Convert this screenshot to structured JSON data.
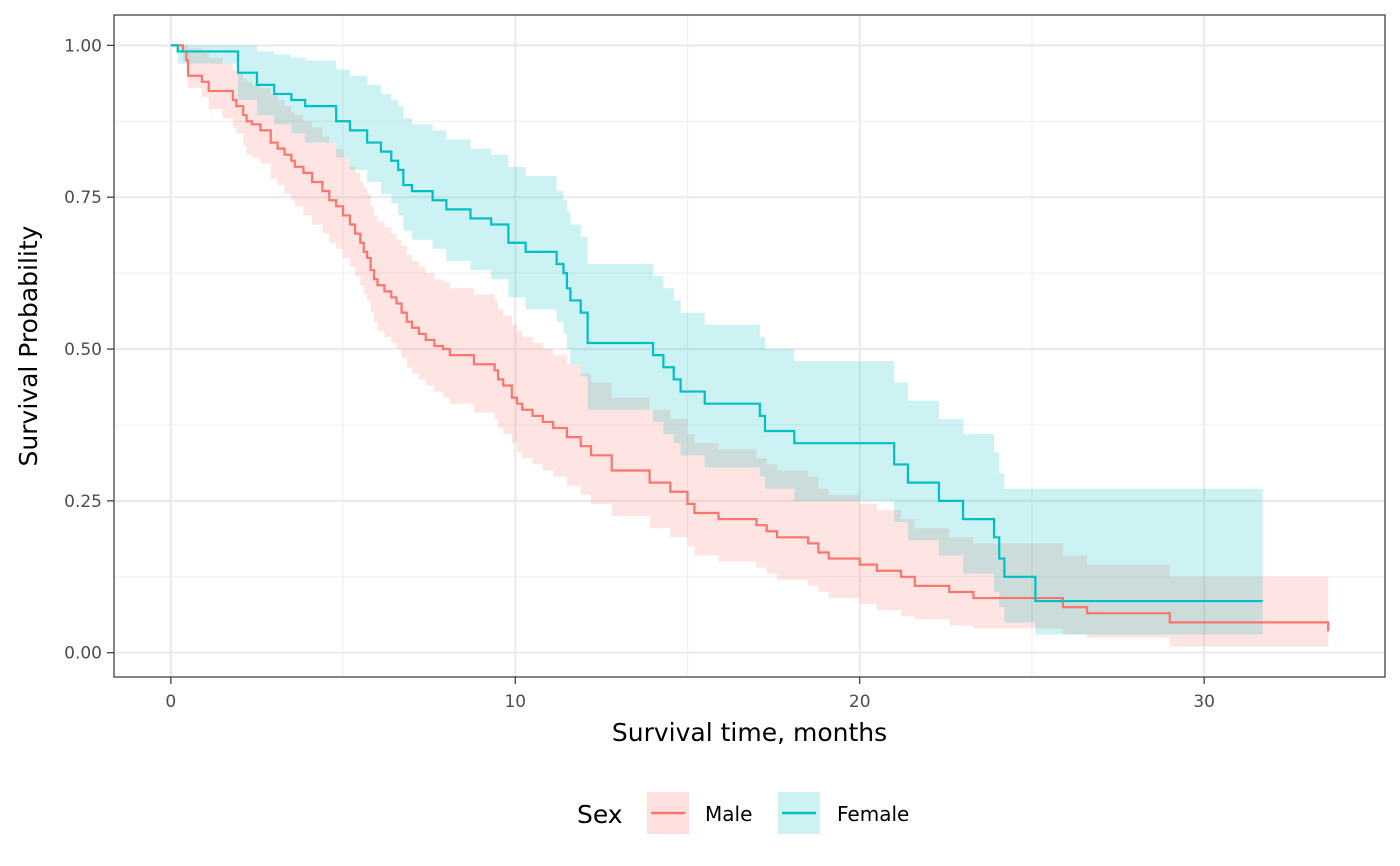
{
  "chart_data": {
    "type": "line",
    "subtype": "kaplan-meier step curves with confidence bands",
    "xlabel": "Survival time, months",
    "ylabel": "Survival Probability",
    "xlim": [
      -1.65,
      35.25
    ],
    "ylim": [
      -0.04,
      1.05
    ],
    "x_ticks": [
      0,
      10,
      20,
      30
    ],
    "x_tick_labels": [
      "0",
      "10",
      "20",
      "30"
    ],
    "y_ticks": [
      0,
      0.25,
      0.5,
      0.75,
      1
    ],
    "y_tick_labels": [
      "0.00",
      "0.25",
      "0.50",
      "0.75",
      "1.00"
    ],
    "grid": true,
    "legend": {
      "title": "Sex",
      "position": "bottom"
    },
    "series": [
      {
        "name": "Male",
        "color": "#F8766D",
        "fill": "#FFE0DE",
        "x": [
          0,
          0.35,
          0.45,
          0.5,
          0.9,
          1.1,
          1.5,
          1.8,
          1.9,
          2.1,
          2.2,
          2.35,
          2.6,
          2.9,
          3.1,
          3.3,
          3.5,
          3.6,
          3.85,
          4.1,
          4.4,
          4.6,
          4.8,
          5.0,
          5.2,
          5.35,
          5.5,
          5.6,
          5.7,
          5.8,
          5.9,
          6.0,
          6.2,
          6.4,
          6.55,
          6.7,
          6.85,
          7.0,
          7.2,
          7.4,
          7.65,
          7.9,
          8.1,
          8.4,
          8.8,
          9.4,
          9.5,
          9.65,
          9.9,
          10.05,
          10.2,
          10.5,
          10.8,
          11.1,
          11.5,
          11.9,
          12.2,
          12.8,
          13.9,
          14.5,
          15.0,
          15.2,
          15.9,
          17.0,
          17.3,
          17.6,
          18.5,
          18.8,
          19.1,
          20.0,
          20.5,
          21.2,
          21.6,
          22.6,
          23.3,
          25.9,
          26.6,
          29.0,
          33.6
        ],
        "y": [
          1,
          0.99,
          0.975,
          0.95,
          0.94,
          0.925,
          0.925,
          0.91,
          0.9,
          0.885,
          0.875,
          0.87,
          0.86,
          0.84,
          0.83,
          0.82,
          0.81,
          0.8,
          0.79,
          0.775,
          0.76,
          0.745,
          0.735,
          0.72,
          0.705,
          0.69,
          0.675,
          0.66,
          0.65,
          0.63,
          0.615,
          0.605,
          0.595,
          0.585,
          0.575,
          0.56,
          0.545,
          0.535,
          0.525,
          0.515,
          0.505,
          0.5,
          0.49,
          0.49,
          0.475,
          0.465,
          0.45,
          0.44,
          0.42,
          0.41,
          0.4,
          0.39,
          0.38,
          0.37,
          0.355,
          0.34,
          0.325,
          0.3,
          0.28,
          0.265,
          0.245,
          0.23,
          0.22,
          0.21,
          0.2,
          0.19,
          0.18,
          0.165,
          0.155,
          0.145,
          0.135,
          0.125,
          0.11,
          0.1,
          0.09,
          0.075,
          0.065,
          0.05,
          0.035
        ],
        "upper": [
          1,
          1,
          1,
          0.995,
          0.99,
          0.98,
          0.97,
          0.96,
          0.955,
          0.945,
          0.94,
          0.935,
          0.93,
          0.92,
          0.91,
          0.9,
          0.89,
          0.885,
          0.875,
          0.865,
          0.85,
          0.84,
          0.83,
          0.815,
          0.8,
          0.79,
          0.775,
          0.765,
          0.755,
          0.735,
          0.72,
          0.71,
          0.7,
          0.69,
          0.68,
          0.67,
          0.655,
          0.645,
          0.635,
          0.625,
          0.615,
          0.61,
          0.6,
          0.6,
          0.59,
          0.58,
          0.565,
          0.555,
          0.54,
          0.53,
          0.52,
          0.51,
          0.5,
          0.49,
          0.475,
          0.46,
          0.445,
          0.42,
          0.4,
          0.385,
          0.36,
          0.345,
          0.335,
          0.32,
          0.31,
          0.3,
          0.29,
          0.27,
          0.26,
          0.245,
          0.235,
          0.22,
          0.205,
          0.19,
          0.18,
          0.16,
          0.145,
          0.125,
          0.115
        ],
        "lower": [
          1,
          0.975,
          0.96,
          0.93,
          0.915,
          0.895,
          0.88,
          0.865,
          0.855,
          0.835,
          0.82,
          0.815,
          0.805,
          0.78,
          0.77,
          0.755,
          0.745,
          0.735,
          0.72,
          0.705,
          0.69,
          0.675,
          0.665,
          0.65,
          0.635,
          0.62,
          0.605,
          0.59,
          0.58,
          0.56,
          0.545,
          0.53,
          0.52,
          0.51,
          0.5,
          0.485,
          0.47,
          0.46,
          0.45,
          0.44,
          0.43,
          0.42,
          0.41,
          0.41,
          0.395,
          0.385,
          0.37,
          0.36,
          0.345,
          0.33,
          0.32,
          0.31,
          0.3,
          0.29,
          0.275,
          0.26,
          0.245,
          0.225,
          0.205,
          0.19,
          0.175,
          0.16,
          0.15,
          0.14,
          0.13,
          0.12,
          0.11,
          0.1,
          0.09,
          0.08,
          0.07,
          0.06,
          0.055,
          0.045,
          0.04,
          0.03,
          0.025,
          0.01,
          0.01
        ]
      },
      {
        "name": "Female",
        "color": "#00BFC4",
        "fill": "#CCF2F3",
        "x": [
          0,
          0.2,
          1.95,
          2.5,
          3.0,
          3.5,
          3.9,
          4.8,
          5.2,
          5.7,
          6.1,
          6.4,
          6.6,
          6.75,
          7.0,
          7.6,
          8.0,
          8.7,
          9.3,
          9.8,
          10.3,
          11.2,
          11.4,
          11.5,
          11.6,
          11.9,
          12.1,
          14.0,
          14.3,
          14.6,
          14.8,
          15.5,
          17.1,
          17.25,
          18.1,
          21.0,
          21.4,
          22.3,
          23.0,
          23.9,
          24.05,
          24.2,
          25.1,
          31.7
        ],
        "y": [
          1,
          0.99,
          0.955,
          0.935,
          0.92,
          0.91,
          0.9,
          0.875,
          0.86,
          0.84,
          0.825,
          0.81,
          0.795,
          0.77,
          0.76,
          0.745,
          0.73,
          0.715,
          0.705,
          0.675,
          0.66,
          0.64,
          0.625,
          0.6,
          0.58,
          0.56,
          0.51,
          0.49,
          0.47,
          0.45,
          0.43,
          0.41,
          0.39,
          0.365,
          0.345,
          0.31,
          0.28,
          0.25,
          0.22,
          0.19,
          0.155,
          0.125,
          0.085,
          0.085
        ],
        "upper": [
          1,
          1,
          1,
          0.99,
          0.985,
          0.98,
          0.975,
          0.96,
          0.95,
          0.935,
          0.92,
          0.91,
          0.9,
          0.88,
          0.87,
          0.86,
          0.845,
          0.83,
          0.82,
          0.8,
          0.785,
          0.76,
          0.745,
          0.725,
          0.705,
          0.685,
          0.64,
          0.62,
          0.6,
          0.58,
          0.56,
          0.54,
          0.52,
          0.5,
          0.48,
          0.445,
          0.415,
          0.385,
          0.36,
          0.33,
          0.295,
          0.27,
          0.27,
          0.27
        ],
        "lower": [
          1,
          0.97,
          0.91,
          0.885,
          0.87,
          0.855,
          0.84,
          0.815,
          0.795,
          0.775,
          0.755,
          0.74,
          0.72,
          0.695,
          0.68,
          0.665,
          0.645,
          0.63,
          0.615,
          0.585,
          0.565,
          0.545,
          0.525,
          0.5,
          0.475,
          0.455,
          0.4,
          0.38,
          0.36,
          0.345,
          0.325,
          0.305,
          0.29,
          0.27,
          0.25,
          0.215,
          0.185,
          0.16,
          0.13,
          0.1,
          0.075,
          0.05,
          0.03,
          0.025
        ]
      }
    ]
  }
}
